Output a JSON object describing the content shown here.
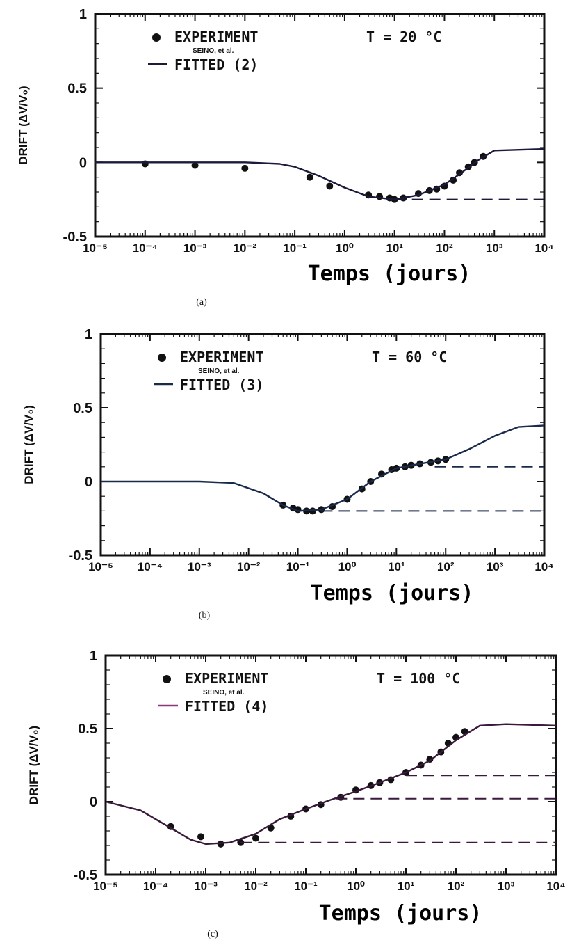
{
  "chart_data": [
    {
      "type": "scatter",
      "panel_label": "(a)",
      "xlabel": "Temps (jours)",
      "ylabel": "DRIFT (ΔV/V₀)",
      "x_scale": "log",
      "xlim": [
        1e-05,
        10000.0
      ],
      "ylim": [
        -0.5,
        1
      ],
      "x_ticks": [
        "10⁻⁵",
        "10⁻⁴",
        "10⁻³",
        "10⁻²",
        "10⁻¹",
        "10⁰",
        "10¹",
        "10²",
        "10³",
        "10⁴"
      ],
      "y_ticks": [
        "1",
        "0.5",
        "0",
        "-0.5"
      ],
      "annotation": "T = 20 °C",
      "legend": {
        "placement": "top-left",
        "experiment": "EXPERIMENT",
        "experiment_sub": "SEINO, et al.",
        "fitted": "FITTED (2)"
      },
      "line_color": "#1a1a3a",
      "series": [
        {
          "name": "EXPERIMENT",
          "kind": "points",
          "x": [
            0.0001,
            0.001,
            0.01,
            0.2,
            0.5,
            3,
            5,
            8,
            10,
            15,
            30,
            50,
            70,
            100,
            150,
            200,
            300,
            400,
            600
          ],
          "y": [
            -0.01,
            -0.02,
            -0.04,
            -0.1,
            -0.16,
            -0.22,
            -0.23,
            -0.24,
            -0.25,
            -0.24,
            -0.21,
            -0.19,
            -0.18,
            -0.16,
            -0.12,
            -0.07,
            -0.03,
            0.0,
            0.04
          ]
        },
        {
          "name": "FITTED (2)",
          "kind": "line",
          "x": [
            1e-05,
            0.001,
            0.01,
            0.05,
            0.1,
            0.3,
            1,
            3,
            10,
            30,
            100,
            200,
            500,
            1000,
            10000
          ],
          "y": [
            0,
            0,
            0,
            -0.01,
            -0.03,
            -0.09,
            -0.17,
            -0.23,
            -0.25,
            -0.22,
            -0.15,
            -0.08,
            0.02,
            0.08,
            0.09
          ]
        },
        {
          "kind": "dashed",
          "x": [
            10,
            10000
          ],
          "y": [
            -0.25,
            -0.25
          ]
        }
      ]
    },
    {
      "type": "scatter",
      "panel_label": "(b)",
      "xlabel": "Temps (jours)",
      "ylabel": "DRIFT (ΔV/V₀)",
      "x_scale": "log",
      "xlim": [
        1e-05,
        10000.0
      ],
      "ylim": [
        -0.5,
        1
      ],
      "x_ticks": [
        "10⁻⁵",
        "10⁻⁴",
        "10⁻³",
        "10⁻²",
        "10⁻¹",
        "10⁰",
        "10¹",
        "10²",
        "10³",
        "10⁴"
      ],
      "y_ticks": [
        "1",
        "0.5",
        "0",
        "-0.5"
      ],
      "annotation": "T = 60 °C",
      "legend": {
        "placement": "top-left",
        "experiment": "EXPERIMENT",
        "experiment_sub": "SEINO, et al.",
        "fitted": "FITTED (3)"
      },
      "line_color": "#1a2a4a",
      "series": [
        {
          "name": "EXPERIMENT",
          "kind": "points",
          "x": [
            0.05,
            0.08,
            0.1,
            0.15,
            0.2,
            0.3,
            0.5,
            1,
            2,
            3,
            5,
            8,
            10,
            15,
            20,
            30,
            50,
            70,
            100
          ],
          "y": [
            -0.16,
            -0.18,
            -0.19,
            -0.2,
            -0.2,
            -0.19,
            -0.17,
            -0.12,
            -0.05,
            0.0,
            0.05,
            0.08,
            0.09,
            0.1,
            0.11,
            0.12,
            0.13,
            0.14,
            0.15
          ]
        },
        {
          "name": "FITTED (3)",
          "kind": "line",
          "x": [
            1e-05,
            0.0001,
            0.001,
            0.005,
            0.02,
            0.05,
            0.1,
            0.3,
            1,
            3,
            10,
            30,
            100,
            300,
            1000,
            3000,
            10000
          ],
          "y": [
            0,
            0,
            0,
            -0.01,
            -0.08,
            -0.16,
            -0.2,
            -0.19,
            -0.12,
            0.0,
            0.09,
            0.12,
            0.15,
            0.22,
            0.31,
            0.37,
            0.38
          ]
        },
        {
          "kind": "dashed",
          "x": [
            0.3,
            10000
          ],
          "y": [
            -0.2,
            -0.2
          ]
        },
        {
          "kind": "dashed",
          "x": [
            60,
            10000
          ],
          "y": [
            0.1,
            0.1
          ]
        }
      ]
    },
    {
      "type": "scatter",
      "panel_label": "(c)",
      "xlabel": "Temps (jours)",
      "ylabel": "DRIFT (ΔV/V₀)",
      "x_scale": "log",
      "xlim": [
        1e-05,
        10000.0
      ],
      "ylim": [
        -0.5,
        1
      ],
      "x_ticks": [
        "10⁻⁵",
        "10⁻⁴",
        "10⁻³",
        "10⁻²",
        "10⁻¹",
        "10⁰",
        "10¹",
        "10²",
        "10³",
        "10⁴"
      ],
      "y_ticks": [
        "1",
        "0.5",
        "0",
        "-0.5"
      ],
      "annotation": "T = 100 °C",
      "legend": {
        "placement": "top-left",
        "experiment": "EXPERIMENT",
        "experiment_sub": "SEINO, et al.",
        "fitted": "FITTED (4)"
      },
      "line_color": "#3a1a3a",
      "legend_line_color": "#8a3a7a",
      "series": [
        {
          "name": "EXPERIMENT",
          "kind": "points",
          "x": [
            0.0002,
            0.0008,
            0.002,
            0.005,
            0.01,
            0.02,
            0.05,
            0.1,
            0.2,
            0.5,
            1,
            2,
            3,
            5,
            10,
            20,
            30,
            50,
            70,
            100,
            150
          ],
          "y": [
            -0.17,
            -0.24,
            -0.29,
            -0.28,
            -0.25,
            -0.18,
            -0.1,
            -0.05,
            -0.02,
            0.03,
            0.08,
            0.11,
            0.13,
            0.15,
            0.2,
            0.25,
            0.29,
            0.34,
            0.4,
            0.44,
            0.48
          ]
        },
        {
          "name": "FITTED (4)",
          "kind": "line",
          "x": [
            1e-05,
            5e-05,
            0.0002,
            0.0005,
            0.001,
            0.003,
            0.01,
            0.03,
            0.1,
            0.3,
            1,
            3,
            10,
            30,
            100,
            300,
            1000,
            10000
          ],
          "y": [
            0,
            -0.06,
            -0.18,
            -0.26,
            -0.29,
            -0.28,
            -0.22,
            -0.12,
            -0.05,
            0.01,
            0.07,
            0.13,
            0.2,
            0.28,
            0.42,
            0.52,
            0.53,
            0.52
          ]
        },
        {
          "kind": "dashed",
          "x": [
            0.005,
            10000
          ],
          "y": [
            -0.28,
            -0.28
          ]
        },
        {
          "kind": "dashed",
          "x": [
            0.4,
            10000
          ],
          "y": [
            0.02,
            0.02
          ]
        },
        {
          "kind": "dashed",
          "x": [
            10,
            10000
          ],
          "y": [
            0.18,
            0.18
          ]
        }
      ]
    }
  ]
}
